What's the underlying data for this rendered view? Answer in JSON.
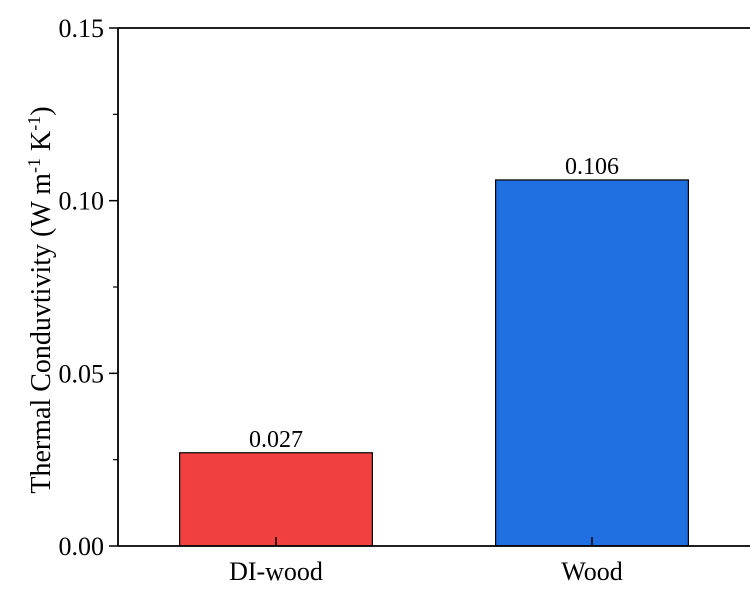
{
  "chart_data": {
    "type": "bar",
    "categories": [
      "DI-wood",
      "Wood"
    ],
    "values": [
      0.027,
      0.106
    ],
    "value_labels": [
      "0.027",
      "0.106"
    ],
    "colors": [
      "#f04040",
      "#1f6fe0"
    ],
    "title": "",
    "xlabel": "",
    "ylabel": {
      "main": "Thermal Conduvtivity (W m",
      "sup1": "-1",
      "mid": " K",
      "sup2": "-1",
      "end": ")"
    },
    "ylim": [
      0,
      0.15
    ],
    "yticks": [
      0.0,
      0.05,
      0.1,
      0.15
    ],
    "ytick_labels": [
      "0.00",
      "0.05",
      "0.10",
      "0.15"
    ],
    "grid": false,
    "legend": "none"
  }
}
